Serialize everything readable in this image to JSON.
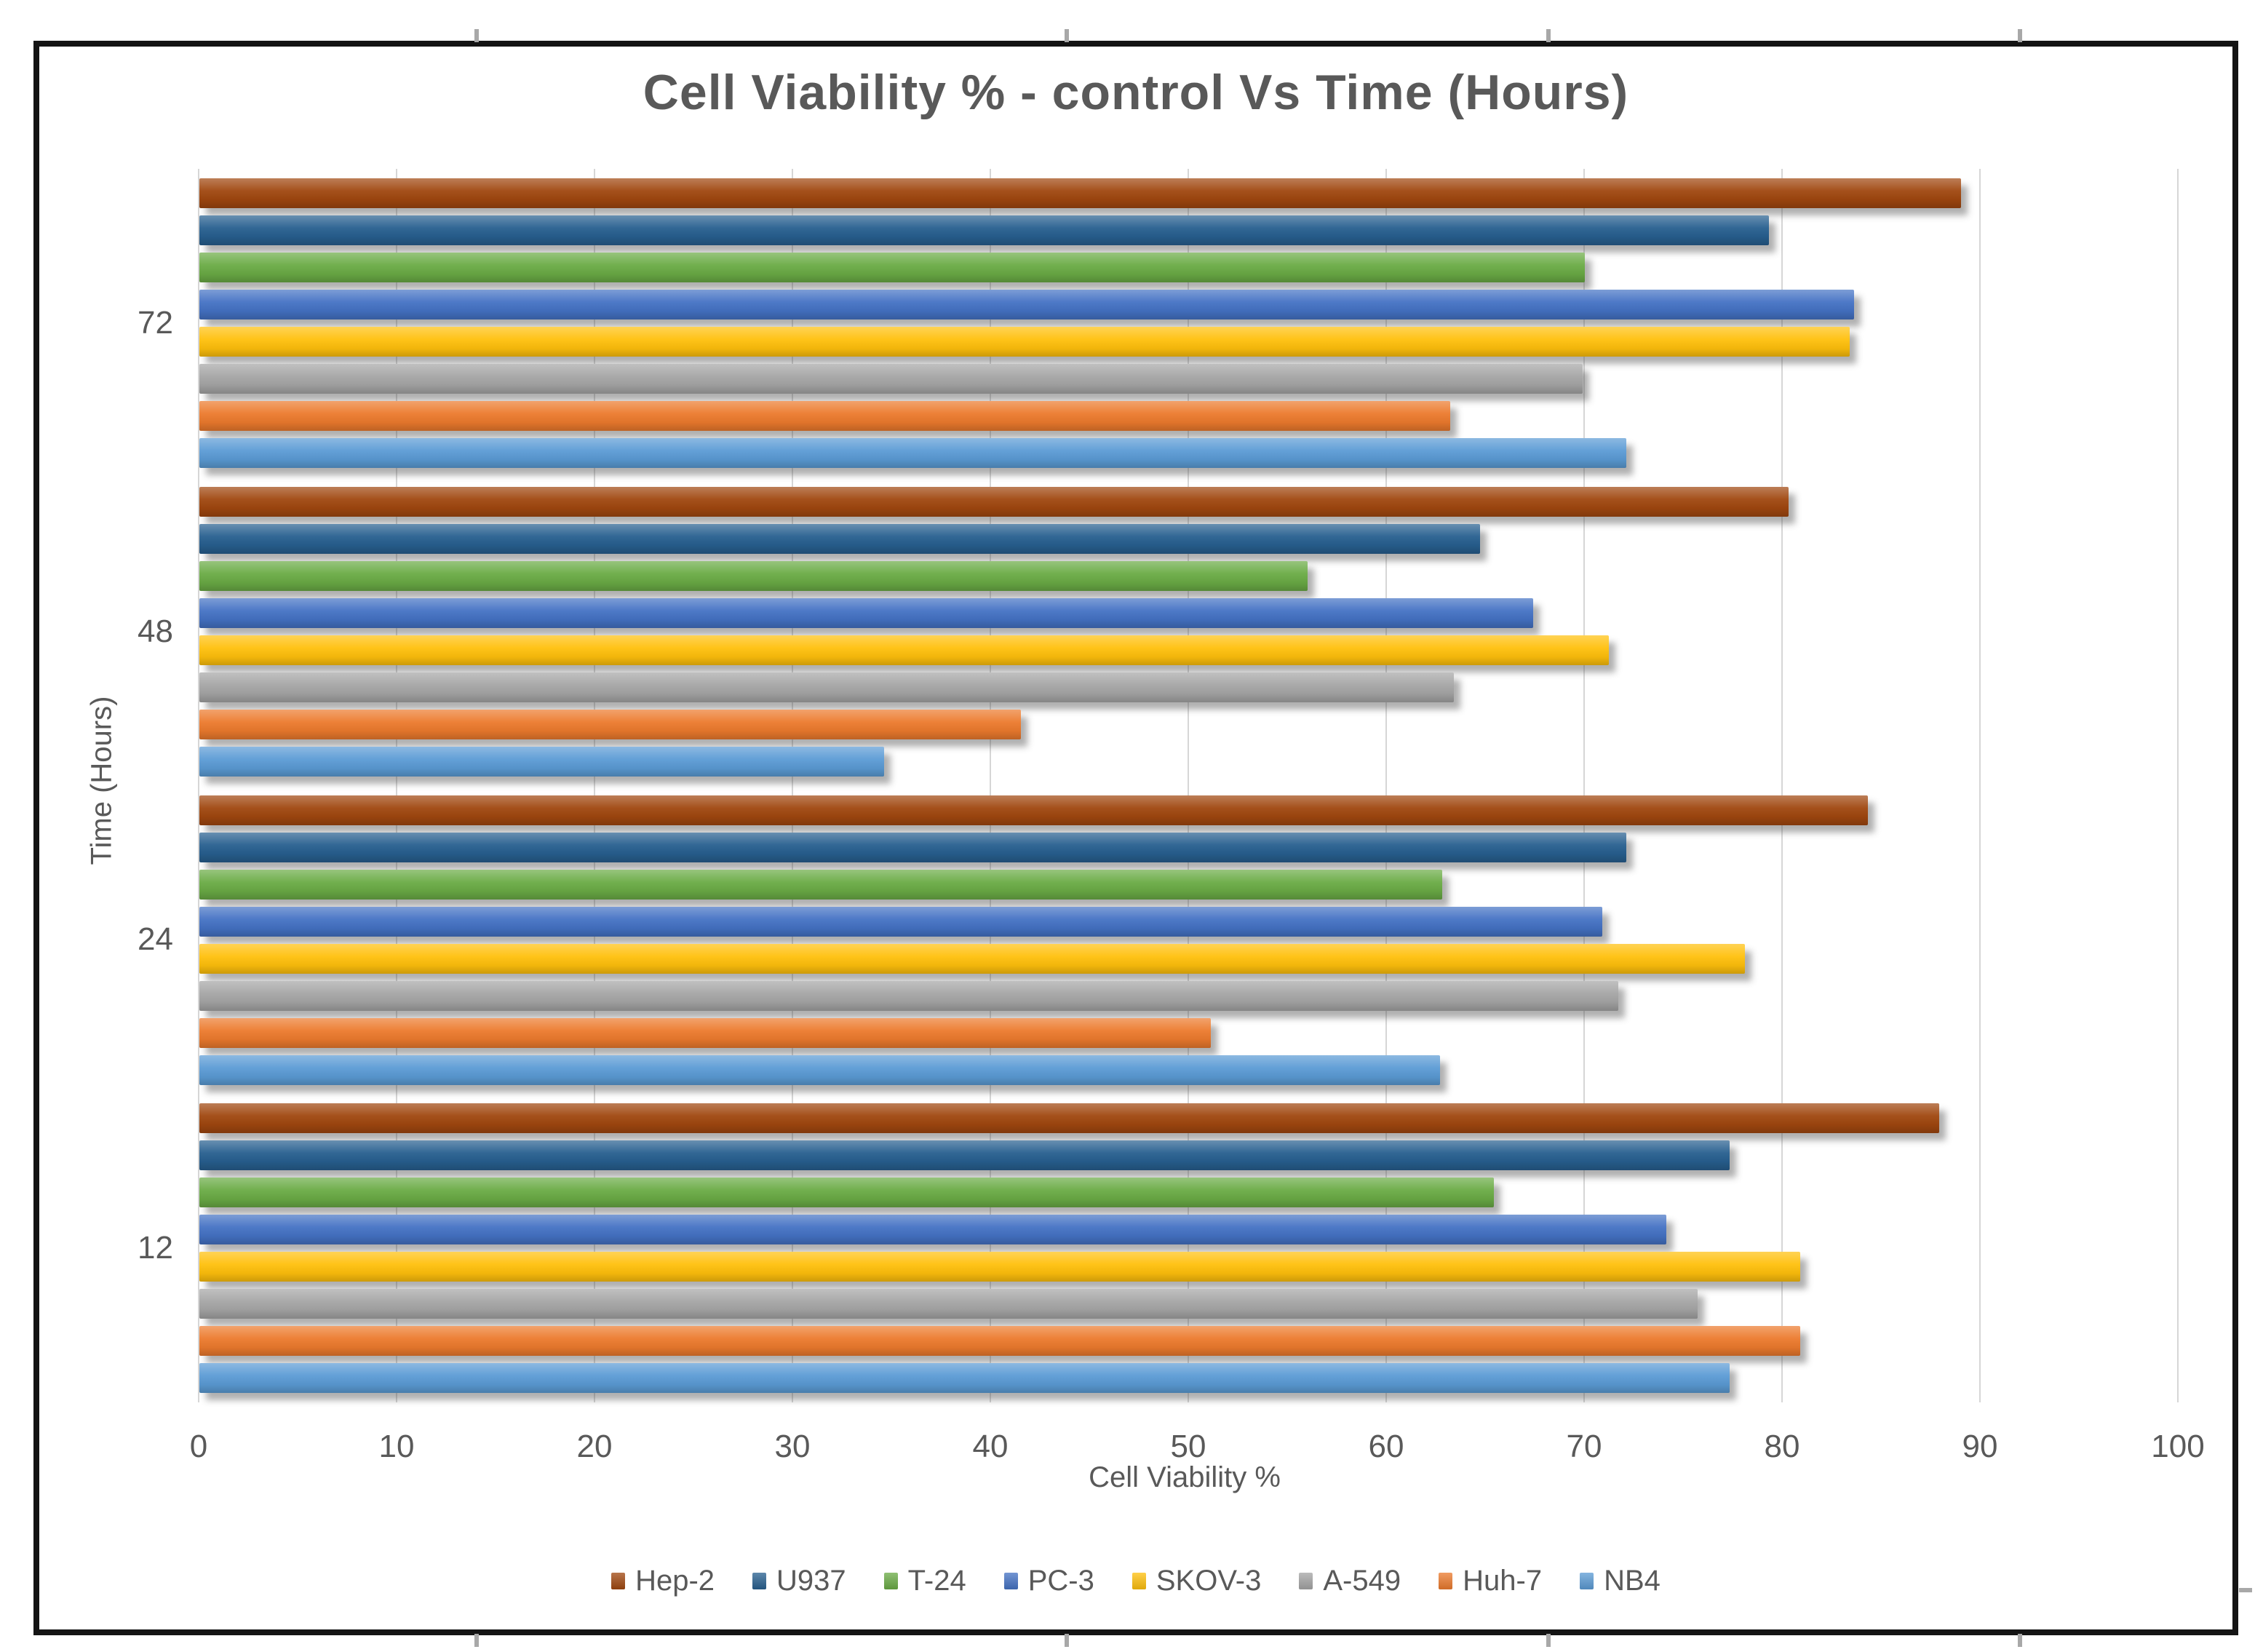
{
  "chart_data": {
    "type": "bar",
    "orientation": "horizontal",
    "title": "Cell Viability % - control Vs Time (Hours)",
    "xlabel": "Cell Viability %",
    "ylabel": "Time (Hours)",
    "xlim": [
      0,
      100
    ],
    "x_ticks": [
      0,
      10,
      20,
      30,
      40,
      50,
      60,
      70,
      80,
      90,
      100
    ],
    "categories": [
      "72",
      "48",
      "24",
      "12"
    ],
    "grid": true,
    "legend_position": "bottom",
    "series": [
      {
        "name": "Hep-2",
        "color": "#A0470F",
        "values": [
          89.0,
          80.3,
          84.3,
          87.9
        ]
      },
      {
        "name": "U937",
        "color": "#275F8F",
        "values": [
          79.3,
          64.7,
          72.1,
          77.3
        ]
      },
      {
        "name": "T-24",
        "color": "#6AAB45",
        "values": [
          70.0,
          56.0,
          62.8,
          65.4
        ]
      },
      {
        "name": "PC-3",
        "color": "#4472C4",
        "values": [
          83.6,
          67.4,
          70.9,
          74.1
        ]
      },
      {
        "name": "SKOV-3",
        "color": "#FFC00C",
        "values": [
          83.4,
          71.2,
          78.1,
          80.9
        ]
      },
      {
        "name": "A-549",
        "color": "#A5A5A5",
        "values": [
          69.9,
          63.4,
          71.7,
          75.7
        ]
      },
      {
        "name": "Huh-7",
        "color": "#EC7A2D",
        "values": [
          63.2,
          41.5,
          51.1,
          80.9
        ]
      },
      {
        "name": "NB4",
        "color": "#5B9BD5",
        "values": [
          72.1,
          34.6,
          62.7,
          77.3
        ]
      }
    ]
  },
  "colors": {
    "text": "#595959",
    "gridline": "#D6D6D6",
    "frame_border": "#141414"
  }
}
